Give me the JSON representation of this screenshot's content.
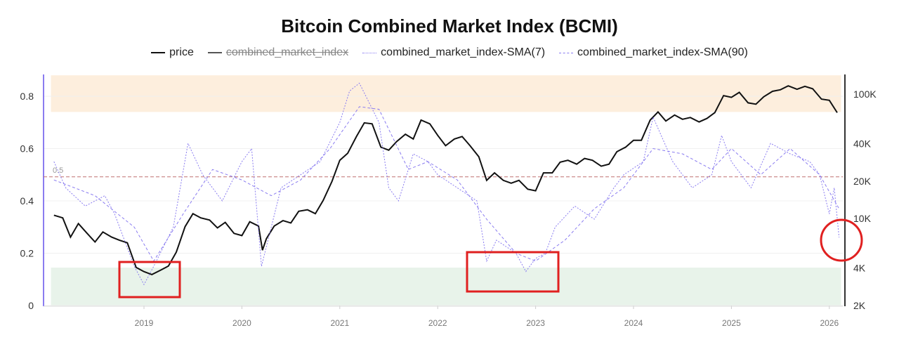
{
  "chart_data": {
    "type": "line",
    "title": "Bitcoin Combined Market Index (BCMI)",
    "legend": [
      {
        "name": "price",
        "color": "#111111",
        "style": "solid"
      },
      {
        "name": "combined_market_index",
        "color": "#555555",
        "style": "solid",
        "hidden": true
      },
      {
        "name": "combined_market_index-SMA(7)",
        "color": "#8a7cf0",
        "style": "dotted"
      },
      {
        "name": "combined_market_index-SMA(90)",
        "color": "#8a7cf0",
        "style": "dashed"
      }
    ],
    "legend_position": "top",
    "x_ticks": [
      "2019",
      "2020",
      "2021",
      "2022",
      "2023",
      "2024",
      "2025",
      "2026"
    ],
    "xlim": [
      2018.0,
      2026.15
    ],
    "left_axis": {
      "ylim": [
        0,
        0.88
      ],
      "ticks": [
        "0",
        "0.2",
        "0.4",
        "0.6",
        "0.8"
      ]
    },
    "right_axis": {
      "scale": "log",
      "ylim": [
        2000,
        130000
      ],
      "ticks": [
        {
          "v": 2000,
          "l": "2K"
        },
        {
          "v": 4000,
          "l": "4K"
        },
        {
          "v": 10000,
          "l": "10K"
        },
        {
          "v": 20000,
          "l": "20K"
        },
        {
          "v": 40000,
          "l": "40K"
        },
        {
          "v": 100000,
          "l": "100K"
        }
      ]
    },
    "bands": [
      {
        "from": 0.74,
        "to": 0.88,
        "color": "#fdeedd"
      },
      {
        "from": 0,
        "to": 0.145,
        "color": "#e8f3ea"
      }
    ],
    "reference_line": {
      "value": 0.5,
      "label": "0.5",
      "color": "#c07070"
    },
    "series": [
      {
        "name": "price",
        "axis": "right",
        "x": [
          2018.08,
          2018.17,
          2018.25,
          2018.33,
          2018.42,
          2018.5,
          2018.58,
          2018.67,
          2018.75,
          2018.83,
          2018.92,
          2019.0,
          2019.08,
          2019.17,
          2019.25,
          2019.33,
          2019.42,
          2019.5,
          2019.58,
          2019.67,
          2019.75,
          2019.83,
          2019.92,
          2020.0,
          2020.08,
          2020.17,
          2020.21,
          2020.25,
          2020.33,
          2020.42,
          2020.5,
          2020.58,
          2020.67,
          2020.75,
          2020.83,
          2020.92,
          2021.0,
          2021.08,
          2021.17,
          2021.25,
          2021.33,
          2021.42,
          2021.5,
          2021.58,
          2021.67,
          2021.75,
          2021.83,
          2021.92,
          2022.0,
          2022.08,
          2022.17,
          2022.25,
          2022.33,
          2022.42,
          2022.5,
          2022.58,
          2022.67,
          2022.75,
          2022.83,
          2022.92,
          2023.0,
          2023.08,
          2023.17,
          2023.25,
          2023.33,
          2023.42,
          2023.5,
          2023.58,
          2023.67,
          2023.75,
          2023.83,
          2023.92,
          2024.0,
          2024.08,
          2024.17,
          2024.25,
          2024.33,
          2024.42,
          2024.5,
          2024.58,
          2024.67,
          2024.75,
          2024.83,
          2024.92,
          2025.0,
          2025.08,
          2025.17,
          2025.25,
          2025.33,
          2025.42,
          2025.5,
          2025.58,
          2025.67,
          2025.75,
          2025.83,
          2025.92,
          2026.0,
          2026.08
        ],
        "values": [
          10500,
          10000,
          7000,
          9000,
          7500,
          6400,
          7700,
          7000,
          6600,
          6300,
          4000,
          3700,
          3500,
          3800,
          4100,
          5300,
          8500,
          10800,
          10000,
          9600,
          8300,
          9200,
          7500,
          7200,
          9300,
          8600,
          5500,
          6800,
          8600,
          9500,
          9100,
          11300,
          11600,
          10800,
          13800,
          19600,
          29000,
          33000,
          45000,
          58000,
          57000,
          37000,
          35000,
          41000,
          47000,
          43000,
          61000,
          57000,
          46000,
          38000,
          43000,
          45000,
          38000,
          31000,
          20000,
          23000,
          20000,
          19000,
          20000,
          17000,
          16500,
          23000,
          23000,
          28000,
          29000,
          27000,
          30000,
          29000,
          26000,
          27000,
          34000,
          37000,
          42000,
          42000,
          61000,
          71000,
          60000,
          67000,
          62000,
          64000,
          59000,
          63000,
          70000,
          96000,
          93000,
          102000,
          84000,
          82000,
          94000,
          104000,
          107000,
          115000,
          108000,
          114000,
          109000,
          90000,
          88000,
          70000
        ]
      },
      {
        "name": "combined_market_index-SMA(7)",
        "axis": "left",
        "x": [
          2018.08,
          2018.2,
          2018.4,
          2018.6,
          2018.7,
          2018.9,
          2019.0,
          2019.1,
          2019.3,
          2019.45,
          2019.6,
          2019.8,
          2020.0,
          2020.1,
          2020.2,
          2020.4,
          2020.6,
          2020.8,
          2021.0,
          2021.1,
          2021.2,
          2021.4,
          2021.5,
          2021.6,
          2021.75,
          2021.9,
          2022.0,
          2022.2,
          2022.4,
          2022.5,
          2022.6,
          2022.8,
          2022.9,
          2023.0,
          2023.1,
          2023.2,
          2023.4,
          2023.6,
          2023.8,
          2023.9,
          2024.1,
          2024.2,
          2024.4,
          2024.6,
          2024.8,
          2024.9,
          2025.0,
          2025.2,
          2025.4,
          2025.6,
          2025.8,
          2025.9,
          2026.0,
          2026.05,
          2026.1
        ],
        "values": [
          0.55,
          0.45,
          0.38,
          0.42,
          0.35,
          0.15,
          0.08,
          0.15,
          0.3,
          0.62,
          0.5,
          0.4,
          0.55,
          0.6,
          0.15,
          0.45,
          0.5,
          0.55,
          0.7,
          0.82,
          0.85,
          0.7,
          0.45,
          0.4,
          0.58,
          0.55,
          0.5,
          0.45,
          0.4,
          0.17,
          0.25,
          0.2,
          0.13,
          0.18,
          0.2,
          0.3,
          0.38,
          0.33,
          0.45,
          0.5,
          0.55,
          0.72,
          0.55,
          0.45,
          0.5,
          0.65,
          0.55,
          0.45,
          0.62,
          0.58,
          0.55,
          0.5,
          0.35,
          0.45,
          0.26
        ]
      },
      {
        "name": "combined_market_index-SMA(90)",
        "axis": "left",
        "x": [
          2018.08,
          2018.5,
          2018.9,
          2019.1,
          2019.4,
          2019.7,
          2020.0,
          2020.3,
          2020.6,
          2020.9,
          2021.2,
          2021.4,
          2021.7,
          2021.9,
          2022.2,
          2022.5,
          2022.8,
          2023.0,
          2023.3,
          2023.6,
          2023.9,
          2024.2,
          2024.5,
          2024.8,
          2025.0,
          2025.3,
          2025.6,
          2025.9,
          2026.1
        ],
        "values": [
          0.48,
          0.42,
          0.3,
          0.17,
          0.35,
          0.52,
          0.48,
          0.42,
          0.48,
          0.6,
          0.76,
          0.75,
          0.52,
          0.55,
          0.48,
          0.33,
          0.2,
          0.17,
          0.25,
          0.37,
          0.45,
          0.6,
          0.58,
          0.52,
          0.6,
          0.5,
          0.6,
          0.5,
          0.37
        ]
      }
    ]
  }
}
